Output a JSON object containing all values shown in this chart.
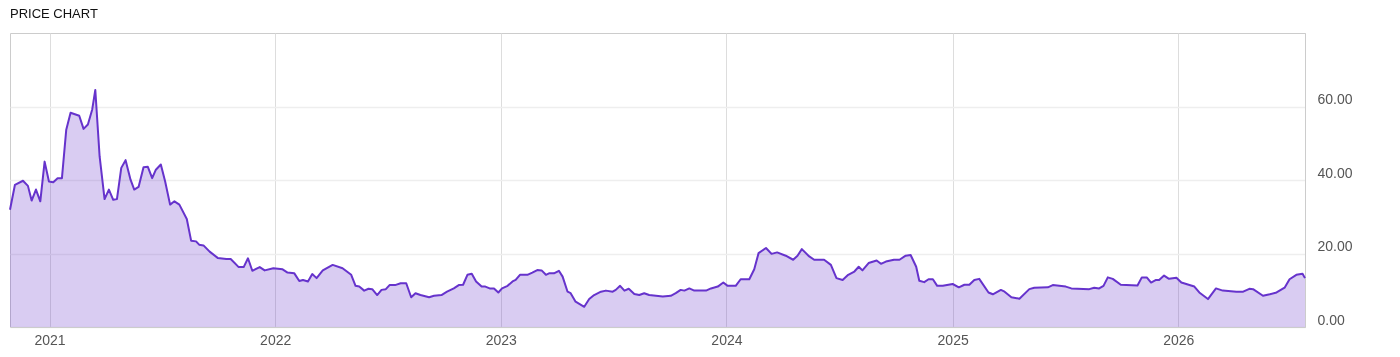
{
  "chart_data": {
    "type": "area",
    "title": "PRICE CHART",
    "x": [
      "2020-10-29",
      "2020-11-06",
      "2020-11-19",
      "2020-11-27",
      "2020-12-03",
      "2020-12-10",
      "2020-12-17",
      "2020-12-24",
      "2020-12-31",
      "2021-01-07",
      "2021-01-14",
      "2021-01-21",
      "2021-01-28",
      "2021-02-04",
      "2021-02-18",
      "2021-02-25",
      "2021-03-04",
      "2021-03-11",
      "2021-03-16",
      "2021-03-23",
      "2021-03-31",
      "2021-04-07",
      "2021-04-14",
      "2021-04-20",
      "2021-04-27",
      "2021-05-04",
      "2021-05-12",
      "2021-05-18",
      "2021-05-25",
      "2021-06-02",
      "2021-06-09",
      "2021-06-16",
      "2021-06-22",
      "2021-06-30",
      "2021-07-07",
      "2021-07-15",
      "2021-07-22",
      "2021-07-30",
      "2021-08-11",
      "2021-08-18",
      "2021-08-26",
      "2021-08-31",
      "2021-09-07",
      "2021-09-17",
      "2021-09-30",
      "2021-10-14",
      "2021-10-21",
      "2021-11-03",
      "2021-11-11",
      "2021-11-18",
      "2021-11-25",
      "2021-12-07",
      "2021-12-15",
      "2021-12-29",
      "2022-01-13",
      "2022-01-21",
      "2022-02-01",
      "2022-02-09",
      "2022-02-15",
      "2022-02-23",
      "2022-03-02",
      "2022-03-09",
      "2022-03-19",
      "2022-04-04",
      "2022-04-20",
      "2022-05-04",
      "2022-05-11",
      "2022-05-17",
      "2022-05-25",
      "2022-06-01",
      "2022-06-07",
      "2022-06-15",
      "2022-06-22",
      "2022-06-29",
      "2022-07-05",
      "2022-07-14",
      "2022-07-23",
      "2022-08-01",
      "2022-08-09",
      "2022-08-16",
      "2022-08-24",
      "2022-09-07",
      "2022-09-15",
      "2022-09-27",
      "2022-10-06",
      "2022-10-17",
      "2022-10-25",
      "2022-11-01",
      "2022-11-08",
      "2022-11-15",
      "2022-11-22",
      "2022-12-01",
      "2022-12-07",
      "2022-12-14",
      "2022-12-21",
      "2022-12-28",
      "2023-01-03",
      "2023-01-12",
      "2023-01-20",
      "2023-01-25",
      "2023-02-01",
      "2023-02-13",
      "2023-02-21",
      "2023-03-01",
      "2023-03-08",
      "2023-03-15",
      "2023-03-20",
      "2023-03-28",
      "2023-04-05",
      "2023-04-11",
      "2023-04-19",
      "2023-04-24",
      "2023-05-02",
      "2023-05-16",
      "2023-05-24",
      "2023-06-01",
      "2023-06-12",
      "2023-06-20",
      "2023-07-01",
      "2023-07-06",
      "2023-07-13",
      "2023-07-20",
      "2023-07-27",
      "2023-08-05",
      "2023-08-13",
      "2023-08-21",
      "2023-08-29",
      "2023-09-20",
      "2023-10-03",
      "2023-10-11",
      "2023-10-19",
      "2023-10-25",
      "2023-11-02",
      "2023-11-10",
      "2023-11-29",
      "2023-12-07",
      "2023-12-18",
      "2023-12-27",
      "2024-01-03",
      "2024-01-16",
      "2024-01-24",
      "2024-02-07",
      "2024-02-15",
      "2024-02-22",
      "2024-03-05",
      "2024-03-14",
      "2024-03-23",
      "2024-04-06",
      "2024-04-18",
      "2024-04-25",
      "2024-05-02",
      "2024-05-14",
      "2024-05-22",
      "2024-06-07",
      "2024-06-18",
      "2024-06-27",
      "2024-07-07",
      "2024-07-16",
      "2024-07-26",
      "2024-08-02",
      "2024-08-08",
      "2024-08-18",
      "2024-08-31",
      "2024-09-07",
      "2024-09-15",
      "2024-09-28",
      "2024-10-07",
      "2024-10-17",
      "2024-10-25",
      "2024-11-03",
      "2024-11-08",
      "2024-11-16",
      "2024-11-23",
      "2024-11-30",
      "2024-12-07",
      "2024-12-16",
      "2025-01-01",
      "2025-01-11",
      "2025-01-20",
      "2025-01-28",
      "2025-02-05",
      "2025-02-13",
      "2025-02-28",
      "2025-03-07",
      "2025-03-20",
      "2025-03-26",
      "2025-04-06",
      "2025-04-19",
      "2025-05-05",
      "2025-05-13",
      "2025-06-04",
      "2025-06-12",
      "2025-07-03",
      "2025-07-12",
      "2025-08-10",
      "2025-08-18",
      "2025-08-26",
      "2025-09-02",
      "2025-09-09",
      "2025-09-17",
      "2025-09-30",
      "2025-10-27",
      "2025-11-03",
      "2025-11-11",
      "2025-11-18",
      "2025-11-26",
      "2025-12-01",
      "2025-12-09",
      "2025-12-17",
      "2025-12-29",
      "2026-01-06",
      "2026-01-27",
      "2026-02-04",
      "2026-02-18",
      "2026-03-03",
      "2026-03-14",
      "2026-04-05",
      "2026-04-16",
      "2026-04-26",
      "2026-05-02",
      "2026-05-18",
      "2026-05-29",
      "2026-06-09",
      "2026-06-22",
      "2026-06-30",
      "2026-07-11",
      "2026-07-21",
      "2026-07-25"
    ],
    "series": [
      {
        "color": "#6633cc",
        "values": [
          31.9,
          38.7,
          39.8,
          38.4,
          34.4,
          37.4,
          34.2,
          45.0,
          39.6,
          39.4,
          40.5,
          40.5,
          53.7,
          58.3,
          57.5,
          53.9,
          55.1,
          59.2,
          64.5,
          46.4,
          34.8,
          37.4,
          34.6,
          34.8,
          43.3,
          45.4,
          40.1,
          37.4,
          38.1,
          43.5,
          43.6,
          40.5,
          42.8,
          44.2,
          39.6,
          33.3,
          34.2,
          33.3,
          29.4,
          23.5,
          23.3,
          22.4,
          22.2,
          20.5,
          18.8,
          18.5,
          18.5,
          16.3,
          16.3,
          18.7,
          15.3,
          16.3,
          15.4,
          16.0,
          15.7,
          14.8,
          14.6,
          12.5,
          12.8,
          12.4,
          14.4,
          13.3,
          15.4,
          16.9,
          16.0,
          14.2,
          11.2,
          11.0,
          9.9,
          10.4,
          10.3,
          8.7,
          10.1,
          10.3,
          11.4,
          11.4,
          11.9,
          11.9,
          8.1,
          9.2,
          8.7,
          8.1,
          8.5,
          8.7,
          9.6,
          10.5,
          11.4,
          11.5,
          14.2,
          14.5,
          12.4,
          11.0,
          11.0,
          10.5,
          10.5,
          9.4,
          10.5,
          11.2,
          12.4,
          12.8,
          14.2,
          14.2,
          14.8,
          15.5,
          15.4,
          14.2,
          14.6,
          14.6,
          15.3,
          13.7,
          9.6,
          9.2,
          6.9,
          5.5,
          7.6,
          8.7,
          9.6,
          9.9,
          9.6,
          10.1,
          11.2,
          9.9,
          10.4,
          9.0,
          8.7,
          9.2,
          8.7,
          8.3,
          8.5,
          9.2,
          10.1,
          9.9,
          10.5,
          9.9,
          9.9,
          10.5,
          11.0,
          12.1,
          11.2,
          11.2,
          13.0,
          13.0,
          15.7,
          20.1,
          21.5,
          19.9,
          20.3,
          19.4,
          18.3,
          19.4,
          21.2,
          19.2,
          18.3,
          18.3,
          16.9,
          13.3,
          12.8,
          14.2,
          15.1,
          16.4,
          15.4,
          17.4,
          18.1,
          17.2,
          17.8,
          18.3,
          18.3,
          19.4,
          19.6,
          16.4,
          12.6,
          12.2,
          13.0,
          13.0,
          11.2,
          11.2,
          11.7,
          10.8,
          11.5,
          11.5,
          12.8,
          13.1,
          9.4,
          8.9,
          10.1,
          9.6,
          8.1,
          7.7,
          10.3,
          10.7,
          10.8,
          11.4,
          11.0,
          10.5,
          10.3,
          10.7,
          10.5,
          11.2,
          13.5,
          13.1,
          11.5,
          11.3,
          13.5,
          13.5,
          12.1,
          12.8,
          12.8,
          14.0,
          13.1,
          13.4,
          12.1,
          11.0,
          9.4,
          7.6,
          10.5,
          9.9,
          9.6,
          9.6,
          10.4,
          10.3,
          8.5,
          8.9,
          9.4,
          10.7,
          13.0,
          14.2,
          14.5,
          13.3
        ]
      }
    ],
    "xlim": [
      "2020-10-29",
      "2026-07-25"
    ],
    "xticks": [
      "2021",
      "2022",
      "2023",
      "2024",
      "2025",
      "2026"
    ],
    "ylim": [
      0,
      80
    ],
    "yticks": [
      {
        "value": 0,
        "label": "0.00"
      },
      {
        "value": 20,
        "label": "20.00"
      },
      {
        "value": 40,
        "label": "40.00"
      },
      {
        "value": 60,
        "label": "60.00"
      }
    ],
    "grid": true
  }
}
